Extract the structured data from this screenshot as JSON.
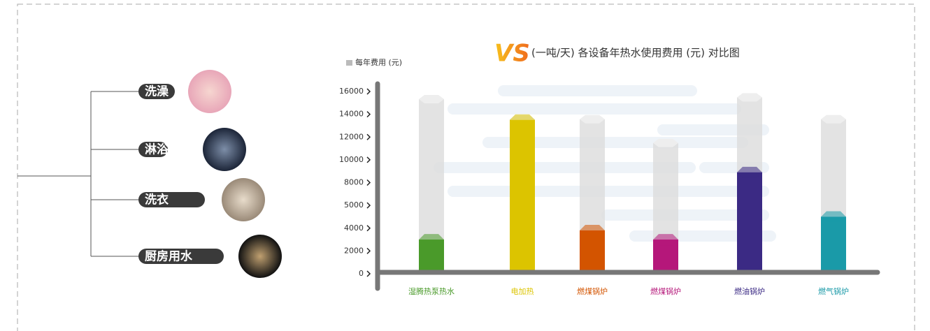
{
  "uses": [
    "洗澡",
    "淋浴",
    "洗衣",
    "厨房用水"
  ],
  "badge": "VS",
  "chart_data": {
    "type": "bar",
    "title": "(一吨/天) 各设备年热水使用费用 (元) 对比图",
    "y_label": "每年费用 (元)",
    "categories": [
      "湿腾热泵热水",
      "电加热",
      "燃煤锅炉",
      "燃煤锅炉",
      "燃油锅炉",
      "燃气锅炉"
    ],
    "values": [
      3000,
      13500,
      3800,
      3000,
      8900,
      4500
    ],
    "colors": [
      "#4a9a2a",
      "#dcc400",
      "#d35400",
      "#b5177a",
      "#3b2a84",
      "#1a9aa8"
    ],
    "ylim": [
      0,
      16000
    ],
    "yticks": [
      0,
      2000,
      4000,
      5000,
      8000,
      10000,
      12000,
      14000,
      16000
    ]
  }
}
